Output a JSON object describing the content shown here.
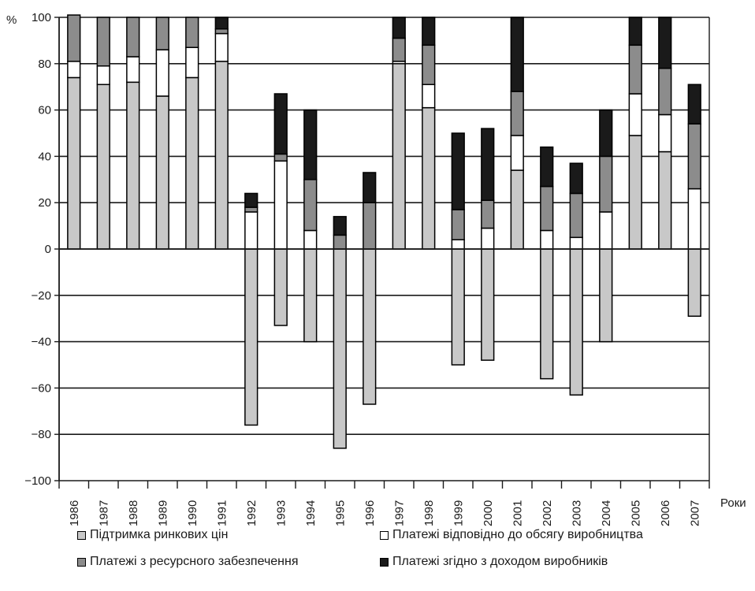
{
  "chart_data": {
    "type": "bar",
    "stacked": true,
    "ylabel": "%",
    "xlabel": "Роки",
    "ylim": [
      -100,
      100
    ],
    "yticks": [
      100,
      80,
      60,
      40,
      20,
      0,
      -20,
      -40,
      -60,
      -80,
      -100
    ],
    "ytick_labels": [
      "100",
      "80",
      "60",
      "40",
      "20",
      "0",
      "−20",
      "−40",
      "−60",
      "−80",
      "−100"
    ],
    "grid": true,
    "legend_position": "bottom",
    "categories": [
      "1986",
      "1987",
      "1988",
      "1989",
      "1990",
      "1991",
      "1992",
      "1993",
      "1994",
      "1995",
      "1996",
      "1997",
      "1998",
      "1999",
      "2000",
      "2001",
      "2002",
      "2003",
      "2004",
      "2005",
      "2006",
      "2007"
    ],
    "series": [
      {
        "name": "Підтримка ринкових цін",
        "color": "#c8c8c8",
        "values": [
          74,
          71,
          72,
          66,
          74,
          81,
          -76,
          -33,
          -40,
          -86,
          -67,
          80,
          61,
          -50,
          -48,
          34,
          -56,
          -63,
          -40,
          49,
          42,
          -29
        ]
      },
      {
        "name": "Платежі відповідно до обсягу виробництва",
        "color": "#ffffff",
        "values": [
          7,
          8,
          11,
          20,
          13,
          12,
          16,
          38,
          8,
          0,
          0,
          1,
          10,
          4,
          9,
          15,
          8,
          5,
          16,
          18,
          16,
          26
        ]
      },
      {
        "name": "Платежі з ресурсного забезпечення",
        "color": "#8c8c8c",
        "values": [
          20,
          21,
          17,
          14,
          13,
          2,
          2,
          3,
          22,
          6,
          20,
          10,
          17,
          13,
          12,
          19,
          19,
          19,
          24,
          21,
          20,
          28
        ]
      },
      {
        "name": "Платежі згідно з доходом виробників",
        "color": "#1a1a1a",
        "values": [
          0,
          0,
          0,
          0,
          0,
          5,
          6,
          26,
          30,
          8,
          13,
          9,
          12,
          33,
          31,
          32,
          17,
          13,
          20,
          12,
          22,
          17
        ]
      }
    ]
  }
}
